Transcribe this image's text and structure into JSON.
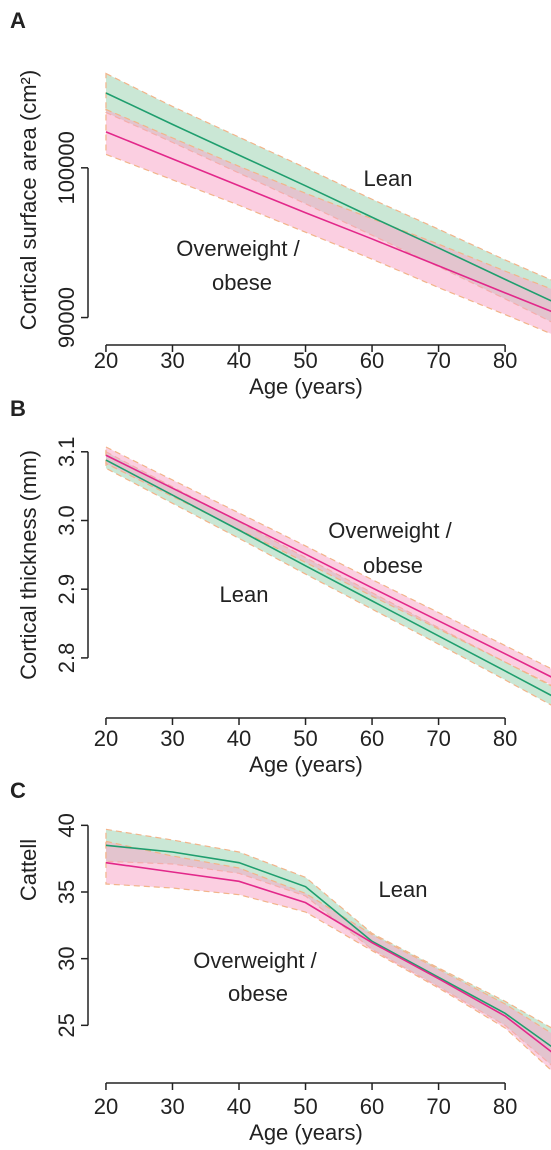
{
  "chart_data": [
    {
      "type": "line",
      "panel_label": "A",
      "ylabel": "Cortical surface area (cm²)",
      "xlabel": "Age (years)",
      "x": [
        20,
        30,
        40,
        50,
        60,
        70,
        80,
        87
      ],
      "xlim": [
        17.3,
        86.9
      ],
      "xticks": [
        20,
        30,
        40,
        50,
        60,
        70,
        80
      ],
      "ylim": [
        88500,
        106200
      ],
      "yticks": [
        90000,
        100000
      ],
      "annotations": [
        "Lean",
        "Overweight /",
        "obese"
      ],
      "series": [
        {
          "color": "#1f9e6e",
          "band_color": "#9fd4b3",
          "values": [
            105000,
            102900,
            100850,
            98800,
            96700,
            94650,
            92550,
            91100
          ],
          "lower": [
            103700,
            101700,
            99650,
            97600,
            95500,
            93400,
            91250,
            89700
          ],
          "upper": [
            106300,
            104100,
            102050,
            100000,
            97900,
            95900,
            93850,
            92500
          ]
        },
        {
          "color": "#e2288a",
          "band_color": "#f7a8c8",
          "values": [
            102400,
            100600,
            98800,
            97000,
            95250,
            93450,
            91650,
            90400
          ],
          "lower": [
            100900,
            99200,
            97500,
            95700,
            93900,
            92000,
            90200,
            88900
          ],
          "upper": [
            103900,
            102000,
            100100,
            98300,
            96600,
            94900,
            93100,
            91900
          ]
        }
      ]
    },
    {
      "type": "line",
      "panel_label": "B",
      "ylabel": "Cortical thickness (mm)",
      "xlabel": "Age (years)",
      "x": [
        20,
        30,
        40,
        50,
        60,
        70,
        80,
        87
      ],
      "xlim": [
        17.3,
        86.9
      ],
      "xticks": [
        20,
        30,
        40,
        50,
        60,
        70,
        80
      ],
      "ylim": [
        2.73,
        3.139
      ],
      "yticks": [
        2.8,
        2.9,
        {
          "value": 3.0,
          "label": "3.0"
        },
        3.1
      ],
      "annotations": [
        "Overweight /",
        "obese",
        "Lean"
      ],
      "series": [
        {
          "color": "#1f9e6e",
          "band_color": "#9fd4b3",
          "values": [
            3.088,
            3.037,
            2.986,
            2.934,
            2.883,
            2.832,
            2.781,
            2.745
          ],
          "lower": [
            3.076,
            3.025,
            2.974,
            2.922,
            2.871,
            2.82,
            2.768,
            2.731
          ],
          "upper": [
            3.1,
            3.049,
            2.998,
            2.946,
            2.895,
            2.844,
            2.794,
            2.759
          ]
        },
        {
          "color": "#e2288a",
          "band_color": "#f7a8c8",
          "values": [
            3.095,
            3.047,
            2.999,
            2.951,
            2.902,
            2.854,
            2.806,
            2.772
          ],
          "lower": [
            3.083,
            3.035,
            2.987,
            2.939,
            2.89,
            2.842,
            2.794,
            2.76
          ],
          "upper": [
            3.107,
            3.059,
            3.011,
            2.963,
            2.914,
            2.866,
            2.818,
            2.784
          ]
        }
      ]
    },
    {
      "type": "line",
      "panel_label": "C",
      "ylabel": "Cattell",
      "xlabel": "Age (years)",
      "x": [
        20,
        30,
        40,
        50,
        60,
        70,
        80,
        87
      ],
      "xlim": [
        17.3,
        86.9
      ],
      "xticks": [
        20,
        30,
        40,
        50,
        60,
        70,
        80
      ],
      "ylim": [
        20.9,
        41.9
      ],
      "yticks": [
        25,
        30,
        35,
        40
      ],
      "annotations": [
        "Lean",
        "Overweight /",
        "obese"
      ],
      "series": [
        {
          "color": "#1f9e6e",
          "band_color": "#9fd4b3",
          "values": [
            38.5,
            38.0,
            37.2,
            35.4,
            31.3,
            28.6,
            25.9,
            23.4
          ],
          "lower": [
            37.3,
            37.1,
            36.4,
            34.7,
            30.7,
            27.9,
            25.0,
            22.0
          ],
          "upper": [
            39.7,
            38.9,
            38.0,
            36.1,
            31.9,
            29.3,
            26.8,
            24.8
          ]
        },
        {
          "color": "#e2288a",
          "band_color": "#f7a8c8",
          "values": [
            37.2,
            36.5,
            35.8,
            34.2,
            31.2,
            28.5,
            25.7,
            23.0
          ],
          "lower": [
            35.6,
            35.3,
            34.8,
            33.5,
            30.6,
            27.8,
            24.8,
            21.6
          ],
          "upper": [
            38.8,
            37.7,
            36.8,
            34.9,
            31.8,
            29.2,
            26.6,
            24.4
          ]
        }
      ]
    }
  ]
}
